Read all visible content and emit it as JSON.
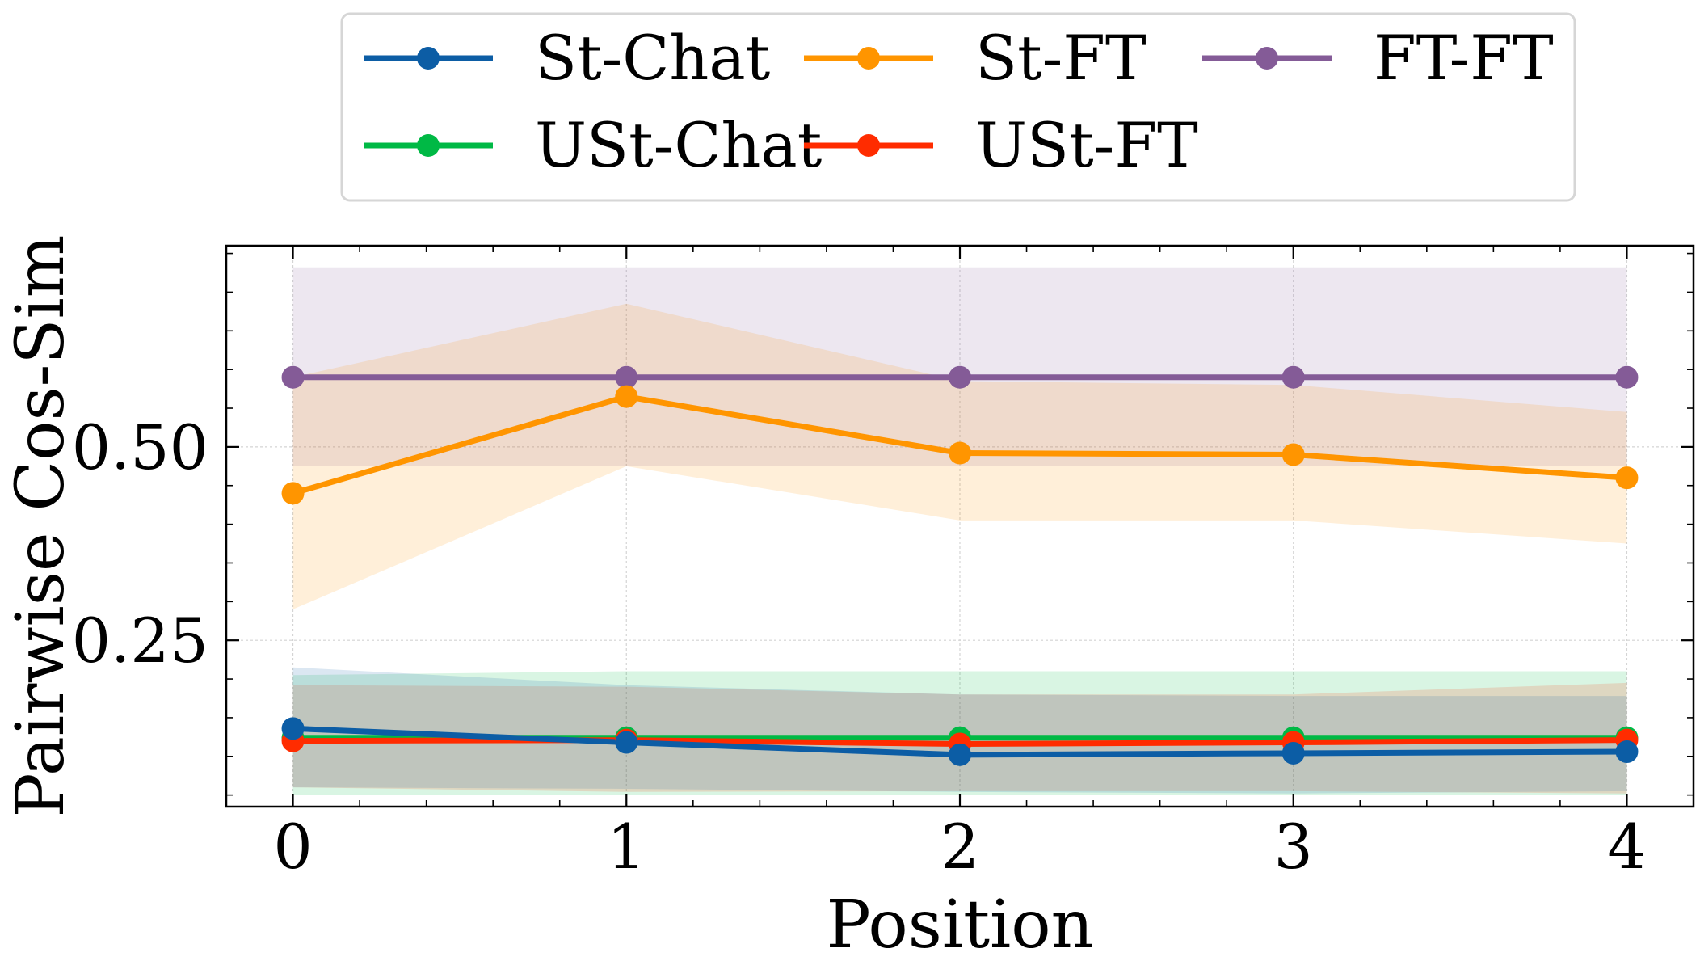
{
  "chart_data": {
    "type": "line",
    "title": "",
    "xlabel": "Position",
    "ylabel": "Pairwise Cos-Sim",
    "x": [
      0,
      1,
      2,
      3,
      4
    ],
    "xticks": [
      "0",
      "1",
      "2",
      "3",
      "4"
    ],
    "yticks": [
      0.25,
      0.5
    ],
    "ytick_labels": [
      "0.25",
      "0.50"
    ],
    "xlim": [
      -0.2,
      4.2
    ],
    "ylim": [
      0.035,
      0.76
    ],
    "grid": true,
    "legend_position": "top-center-outside",
    "series": [
      {
        "name": "FT-FT",
        "color": "#845b97",
        "values": [
          0.59,
          0.59,
          0.59,
          0.59,
          0.59
        ],
        "band_lower": [
          0.475,
          0.475,
          0.475,
          0.475,
          0.475
        ],
        "band_upper": [
          0.732,
          0.732,
          0.732,
          0.732,
          0.732
        ]
      },
      {
        "name": "St-FT",
        "color": "#ff9500",
        "values": [
          0.44,
          0.565,
          0.492,
          0.49,
          0.46
        ],
        "band_lower": [
          0.29,
          0.475,
          0.405,
          0.405,
          0.375
        ],
        "band_upper": [
          0.59,
          0.685,
          0.585,
          0.58,
          0.545
        ]
      },
      {
        "name": "USt-Chat",
        "color": "#00b945",
        "values": [
          0.124,
          0.124,
          0.124,
          0.124,
          0.124
        ],
        "band_lower": [
          0.05,
          0.05,
          0.05,
          0.05,
          0.05
        ],
        "band_upper": [
          0.205,
          0.21,
          0.21,
          0.21,
          0.21
        ]
      },
      {
        "name": "USt-FT",
        "color": "#ff2c00",
        "values": [
          0.12,
          0.121,
          0.116,
          0.118,
          0.121
        ],
        "band_lower": [
          0.06,
          0.054,
          0.055,
          0.055,
          0.052
        ],
        "band_upper": [
          0.192,
          0.19,
          0.18,
          0.18,
          0.195
        ]
      },
      {
        "name": "St-Chat",
        "color": "#0c5da5",
        "values": [
          0.136,
          0.118,
          0.102,
          0.104,
          0.106
        ],
        "band_lower": [
          0.06,
          0.058,
          0.054,
          0.052,
          0.055
        ],
        "band_upper": [
          0.215,
          0.192,
          0.18,
          0.178,
          0.178
        ]
      }
    ],
    "legend": [
      {
        "label": "St-Chat",
        "color": "#0c5da5"
      },
      {
        "label": "St-FT",
        "color": "#ff9500"
      },
      {
        "label": "FT-FT",
        "color": "#845b97"
      },
      {
        "label": "USt-Chat",
        "color": "#00b945"
      },
      {
        "label": "USt-FT",
        "color": "#ff2c00"
      }
    ]
  }
}
